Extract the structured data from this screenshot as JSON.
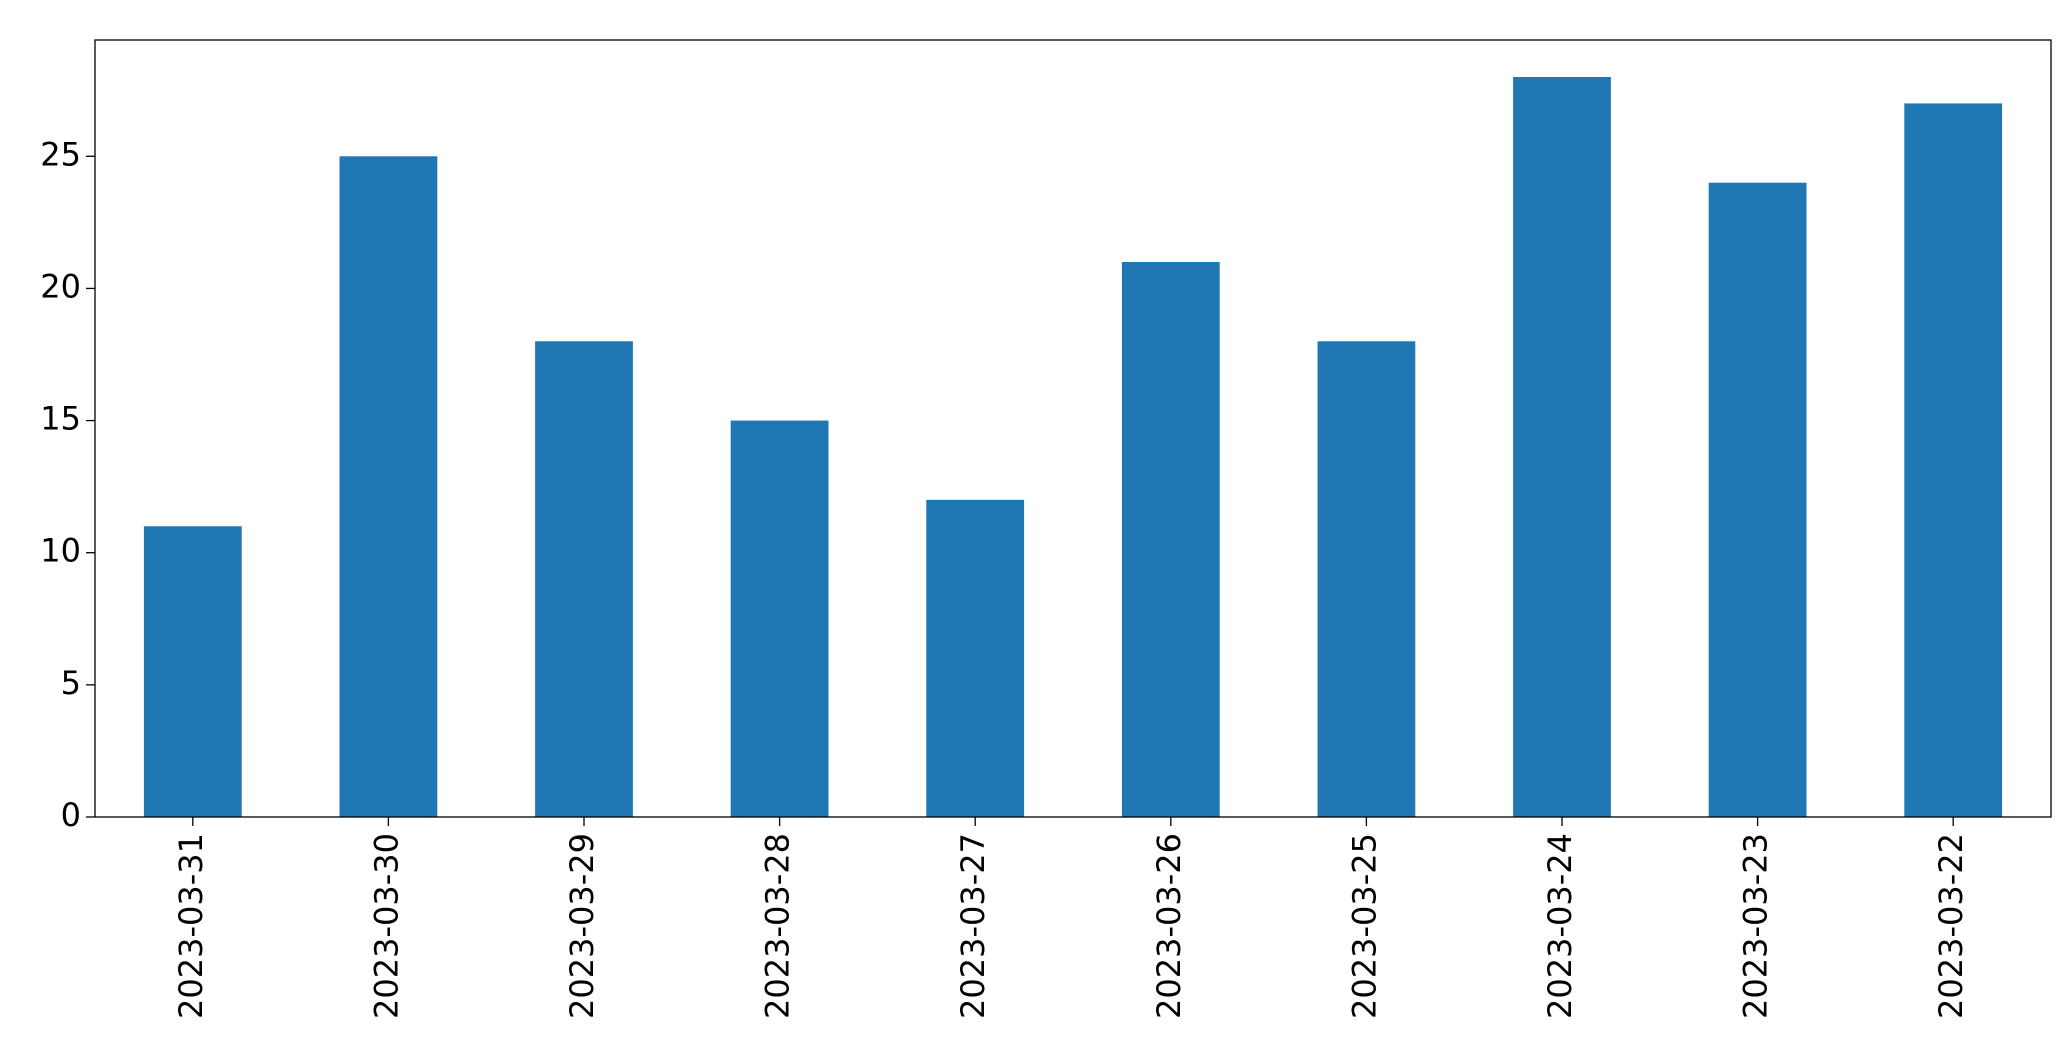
{
  "chart_data": {
    "type": "bar",
    "categories": [
      "2023-03-31",
      "2023-03-30",
      "2023-03-29",
      "2023-03-28",
      "2023-03-27",
      "2023-03-26",
      "2023-03-25",
      "2023-03-24",
      "2023-03-23",
      "2023-03-22"
    ],
    "values": [
      11,
      25,
      18,
      15,
      12,
      21,
      18,
      28,
      24,
      27
    ],
    "color": "#1f77b4",
    "ylim": [
      0,
      29.4
    ],
    "yticks": [
      0,
      5,
      10,
      15,
      20,
      25
    ],
    "grid": false
  }
}
